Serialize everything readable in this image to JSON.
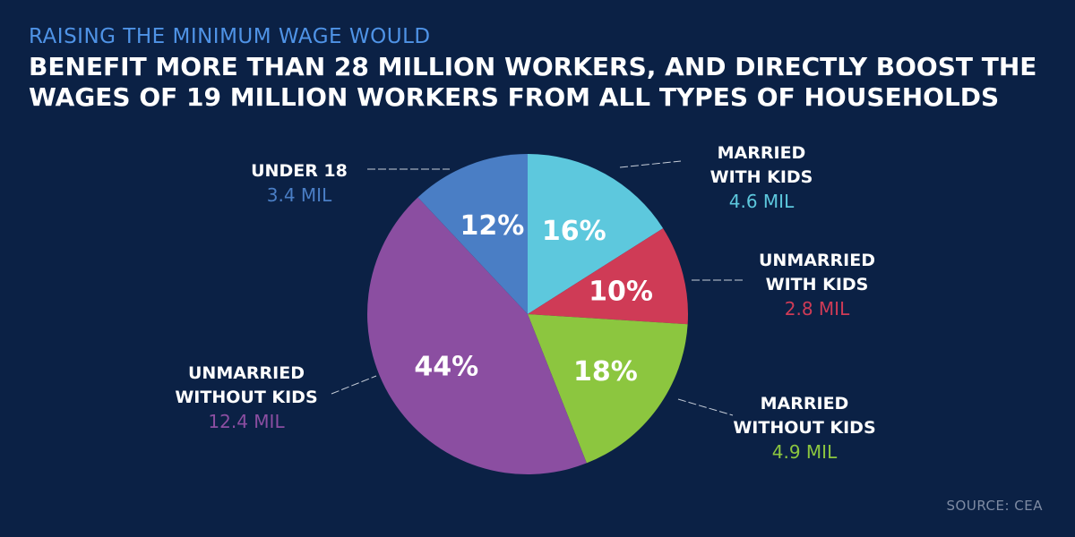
{
  "header": {
    "kicker": "RAISING THE MINIMUM WAGE WOULD",
    "line1": "BENEFIT MORE THAN 28 MILLION WORKERS, AND DIRECTLY BOOST THE",
    "line2": "WAGES OF 19 MILLION WORKERS FROM ALL TYPES OF HOUSEHOLDS"
  },
  "chart_data": {
    "type": "pie",
    "title": "RAISING THE MINIMUM WAGE WOULD BENEFIT MORE THAN 28 MILLION WORKERS, AND DIRECTLY BOOST THE WAGES OF 19 MILLION WORKERS FROM ALL TYPES OF HOUSEHOLDS",
    "start_angle_deg": 0,
    "direction": "clockwise",
    "slices": [
      {
        "key": "married-with-kids",
        "label_lines": [
          "MARRIED",
          "WITH KIDS"
        ],
        "value_label": "4.6 MIL",
        "value": 4.6,
        "percent": 16,
        "percent_label": "16%",
        "color": "#5dc8dd"
      },
      {
        "key": "unmarried-with-kids",
        "label_lines": [
          "UNMARRIED",
          "WITH KIDS"
        ],
        "value_label": "2.8 MIL",
        "value": 2.8,
        "percent": 10,
        "percent_label": "10%",
        "color": "#cf3b56"
      },
      {
        "key": "married-without-kids",
        "label_lines": [
          "MARRIED",
          "WITHOUT KIDS"
        ],
        "value_label": "4.9 MIL",
        "value": 4.9,
        "percent": 18,
        "percent_label": "18%",
        "color": "#8cc63f"
      },
      {
        "key": "unmarried-without-kids",
        "label_lines": [
          "UNMARRIED",
          "WITHOUT KIDS"
        ],
        "value_label": "12.4 MIL",
        "value": 12.4,
        "percent": 44,
        "percent_label": "44%",
        "color": "#8b4ea1"
      },
      {
        "key": "under-18",
        "label_lines": [
          "UNDER 18"
        ],
        "value_label": "3.4 MIL",
        "value": 3.4,
        "percent": 12,
        "percent_label": "12%",
        "color": "#4a7ec5"
      }
    ]
  },
  "footer": {
    "source": "SOURCE: CEA"
  }
}
